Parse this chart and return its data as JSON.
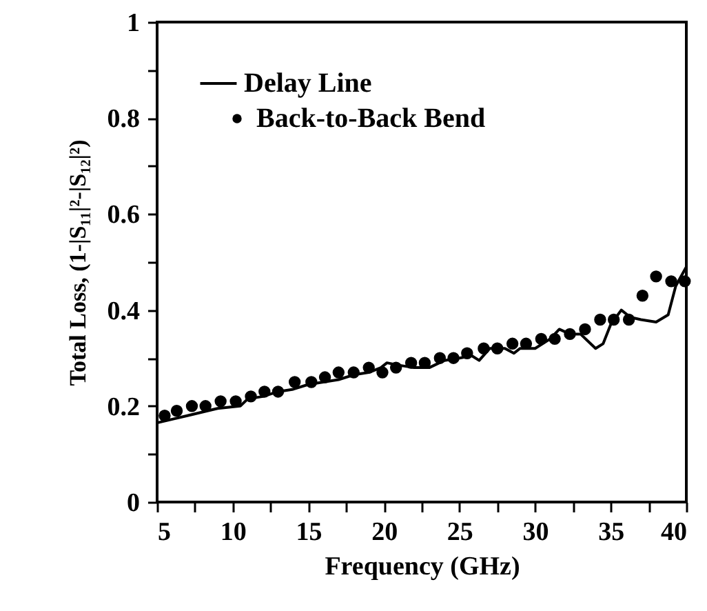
{
  "chart_data": {
    "type": "line",
    "xlabel": "Frequency (GHz)",
    "ylabel": "Total Loss, (1-|S₁₁|²-|S₁₂|²)",
    "xlim": [
      5,
      40
    ],
    "ylim": [
      0,
      1
    ],
    "xticks": [
      5,
      {
        "value": 7.5,
        "label": null
      },
      10,
      {
        "value": 12.5,
        "label": null
      },
      15,
      {
        "value": 17.5,
        "label": null
      },
      20,
      {
        "value": 22.5,
        "label": null
      },
      25,
      {
        "value": 27.5,
        "label": null
      },
      30,
      {
        "value": 32.5,
        "label": null
      },
      35,
      {
        "value": 37.5,
        "label": null
      },
      40
    ],
    "yticks": [
      0,
      {
        "value": 0.1,
        "label": null
      },
      0.2,
      {
        "value": 0.3,
        "label": null
      },
      0.4,
      {
        "value": 0.5,
        "label": null
      },
      0.6,
      {
        "value": 0.7,
        "label": null
      },
      0.8,
      {
        "value": 0.9,
        "label": null
      },
      1
    ],
    "grid": false,
    "legend": "top left",
    "series": [
      {
        "name": "Delay Line",
        "type": "line",
        "color": "#000000",
        "marker": "none",
        "line_style": "solid",
        "x": [
          5,
          7,
          9,
          10.5,
          11,
          12,
          13,
          14,
          15,
          16,
          17,
          18,
          19,
          19.8,
          20.2,
          21,
          22,
          23,
          24,
          25,
          25.8,
          26.3,
          27,
          28,
          28.6,
          29,
          30,
          31,
          31.6,
          32.3,
          33,
          34,
          34.5,
          35,
          35.7,
          36.3,
          37,
          38,
          38.8,
          39.3,
          40
        ],
        "values": [
          0.165,
          0.18,
          0.195,
          0.2,
          0.215,
          0.22,
          0.23,
          0.235,
          0.245,
          0.25,
          0.255,
          0.265,
          0.27,
          0.28,
          0.29,
          0.285,
          0.28,
          0.28,
          0.295,
          0.3,
          0.305,
          0.295,
          0.32,
          0.32,
          0.31,
          0.32,
          0.32,
          0.34,
          0.36,
          0.35,
          0.35,
          0.32,
          0.33,
          0.37,
          0.4,
          0.385,
          0.38,
          0.375,
          0.39,
          0.45,
          0.49
        ]
      },
      {
        "name": "Back-to-Back Bend",
        "type": "scatter",
        "color": "#000000",
        "marker": "circle",
        "x": [
          5.5,
          6.3,
          7.3,
          8.2,
          9.2,
          10.2,
          11.2,
          12.1,
          13,
          14.1,
          15.2,
          16.1,
          17,
          18,
          19,
          19.9,
          20.8,
          21.8,
          22.7,
          23.7,
          24.6,
          25.5,
          26.6,
          27.5,
          28.5,
          29.4,
          30.4,
          31.3,
          32.3,
          33.3,
          34.3,
          35.2,
          36.2,
          37.1,
          38,
          39,
          39.9
        ],
        "values": [
          0.18,
          0.19,
          0.2,
          0.2,
          0.21,
          0.21,
          0.22,
          0.23,
          0.23,
          0.25,
          0.25,
          0.26,
          0.27,
          0.27,
          0.28,
          0.27,
          0.28,
          0.29,
          0.29,
          0.3,
          0.3,
          0.31,
          0.32,
          0.32,
          0.33,
          0.33,
          0.34,
          0.34,
          0.35,
          0.36,
          0.38,
          0.38,
          0.38,
          0.43,
          0.47,
          0.46,
          0.46
        ]
      }
    ]
  }
}
